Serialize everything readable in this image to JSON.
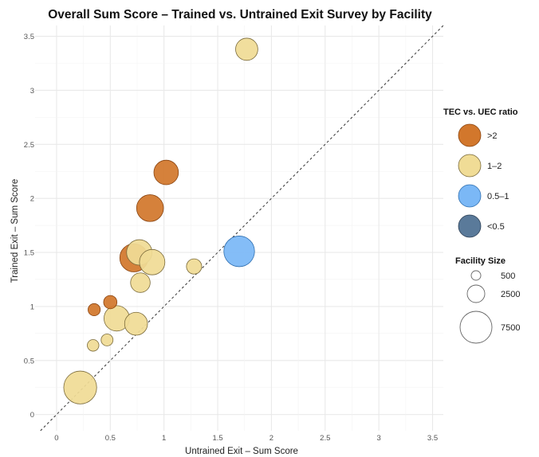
{
  "chart_data": {
    "type": "scatter",
    "title": "Overall Sum Score – Trained vs. Untrained Exit Survey by Facility",
    "xlabel": "Untrained Exit – Sum Score",
    "ylabel": "Trained Exit – Sum Score",
    "xlim": [
      -0.2,
      3.6
    ],
    "ylim": [
      -0.15,
      3.6
    ],
    "x_ticks": [
      0,
      0.5,
      1,
      1.5,
      2,
      2.5,
      3,
      3.5
    ],
    "x_tick_labels": [
      "0",
      "0.5",
      "1",
      "1.5",
      "2",
      "2.5",
      "3",
      "3.5"
    ],
    "y_ticks": [
      0,
      0.5,
      1,
      1.5,
      2,
      2.5,
      3,
      3.5
    ],
    "y_tick_labels": [
      "0",
      "0.5",
      "1",
      "1.5",
      "2",
      "2.5",
      "3",
      "3.5"
    ],
    "grid": true,
    "reference_line": "y = x (dashed)",
    "color_legend": {
      "title": "TEC vs. UEC ratio",
      "items": [
        {
          "label": ">2",
          "color": "#D2772C"
        },
        {
          "label": "1–2",
          "color": "#F0DC96"
        },
        {
          "label": "0.5–1",
          "color": "#7BB8F6"
        },
        {
          "label": "<0.5",
          "color": "#5A7A9A"
        }
      ]
    },
    "size_legend": {
      "title": "Facility Size",
      "items": [
        {
          "label": "500",
          "value": 500
        },
        {
          "label": "2500",
          "value": 2500
        },
        {
          "label": "7500",
          "value": 7500
        }
      ]
    },
    "points": [
      {
        "x": 1.77,
        "y": 3.38,
        "size": 2500,
        "group": "1–2"
      },
      {
        "x": 1.02,
        "y": 2.24,
        "size": 3200,
        "group": ">2"
      },
      {
        "x": 0.87,
        "y": 1.91,
        "size": 4000,
        "group": ">2"
      },
      {
        "x": 1.7,
        "y": 1.51,
        "size": 5500,
        "group": "0.5–1"
      },
      {
        "x": 0.72,
        "y": 1.45,
        "size": 4500,
        "group": ">2"
      },
      {
        "x": 0.77,
        "y": 1.5,
        "size": 3500,
        "group": "1–2"
      },
      {
        "x": 0.89,
        "y": 1.41,
        "size": 3500,
        "group": "1–2"
      },
      {
        "x": 1.28,
        "y": 1.37,
        "size": 900,
        "group": "1–2"
      },
      {
        "x": 0.78,
        "y": 1.22,
        "size": 1800,
        "group": "1–2"
      },
      {
        "x": 0.5,
        "y": 1.04,
        "size": 600,
        "group": ">2"
      },
      {
        "x": 0.35,
        "y": 0.97,
        "size": 450,
        "group": ">2"
      },
      {
        "x": 0.56,
        "y": 0.89,
        "size": 3500,
        "group": "1–2"
      },
      {
        "x": 0.74,
        "y": 0.84,
        "size": 2700,
        "group": "1–2"
      },
      {
        "x": 0.47,
        "y": 0.69,
        "size": 420,
        "group": "1–2"
      },
      {
        "x": 0.34,
        "y": 0.64,
        "size": 380,
        "group": "1–2"
      },
      {
        "x": 0.22,
        "y": 0.25,
        "size": 6500,
        "group": "1–2"
      }
    ]
  }
}
